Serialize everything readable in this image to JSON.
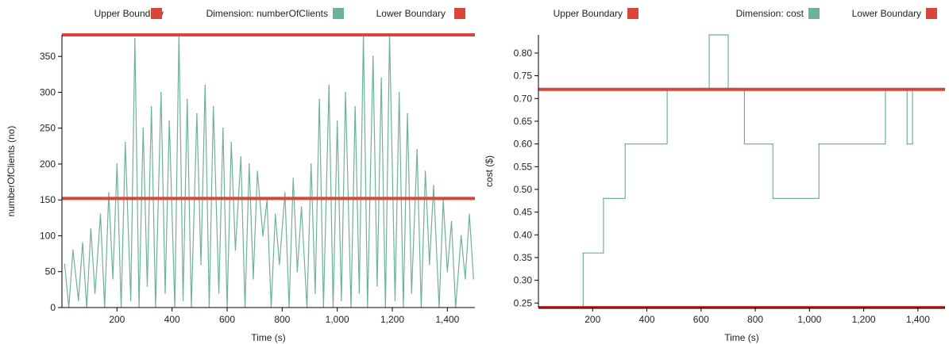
{
  "colors": {
    "boundary": "#d9453a",
    "series": "#6eb394",
    "axis": "#000000",
    "text": "#222222"
  },
  "chart_data": [
    {
      "type": "line",
      "legend": [
        "Upper Boundary",
        "Dimension: numberOfClients",
        "Lower Boundary"
      ],
      "legend_placement": "top",
      "xlabel": "Time (s)",
      "ylabel": "numberOfClients (no)",
      "xlim": [
        0,
        1500
      ],
      "ylim": [
        0,
        380
      ],
      "xticks": [
        200,
        400,
        600,
        800,
        1000,
        1200,
        1400
      ],
      "xtick_labels": [
        "200",
        "400",
        "600",
        "800",
        "1,000",
        "1,200",
        "1,400"
      ],
      "yticks": [
        0,
        50,
        100,
        150,
        200,
        250,
        300,
        350
      ],
      "ytick_labels": [
        "0",
        "50",
        "100",
        "150",
        "200",
        "250",
        "300",
        "350"
      ],
      "grid": false,
      "upper_boundary": 380,
      "lower_boundary": 152,
      "series": [
        {
          "name": "Dimension: numberOfClients",
          "x": [
            10,
            25,
            40,
            60,
            75,
            90,
            105,
            120,
            140,
            155,
            170,
            185,
            200,
            215,
            230,
            250,
            265,
            280,
            295,
            310,
            325,
            340,
            360,
            375,
            390,
            410,
            425,
            440,
            455,
            470,
            490,
            505,
            520,
            535,
            550,
            570,
            585,
            600,
            615,
            630,
            650,
            665,
            680,
            695,
            710,
            730,
            745,
            760,
            775,
            790,
            810,
            825,
            840,
            855,
            870,
            890,
            905,
            920,
            935,
            950,
            970,
            985,
            1000,
            1015,
            1030,
            1050,
            1065,
            1080,
            1095,
            1110,
            1130,
            1145,
            1160,
            1175,
            1190,
            1210,
            1225,
            1240,
            1255,
            1270,
            1290,
            1305,
            1320,
            1335,
            1350,
            1370,
            1385,
            1400,
            1415,
            1430,
            1450,
            1465,
            1480,
            1495
          ],
          "values": [
            60,
            0,
            80,
            10,
            90,
            0,
            110,
            20,
            130,
            0,
            160,
            40,
            200,
            0,
            230,
            10,
            375,
            0,
            250,
            30,
            280,
            0,
            300,
            20,
            260,
            0,
            380,
            10,
            290,
            0,
            270,
            60,
            310,
            0,
            280,
            20,
            250,
            0,
            230,
            80,
            210,
            0,
            200,
            40,
            190,
            100,
            150,
            0,
            130,
            60,
            160,
            0,
            180,
            50,
            140,
            0,
            200,
            20,
            290,
            0,
            310,
            0,
            260,
            10,
            300,
            0,
            280,
            20,
            380,
            0,
            350,
            30,
            320,
            0,
            380,
            10,
            300,
            0,
            270,
            20,
            220,
            0,
            190,
            60,
            170,
            0,
            150,
            50,
            120,
            0,
            100,
            40,
            130,
            40
          ]
        }
      ]
    },
    {
      "type": "line",
      "legend": [
        "Upper Boundary",
        "Dimension: cost",
        "Lower Boundary"
      ],
      "legend_placement": "top",
      "xlabel": "Time (s)",
      "ylabel": "cost ($)",
      "xlim": [
        0,
        1500
      ],
      "ylim": [
        0.24,
        0.84
      ],
      "xticks": [
        200,
        400,
        600,
        800,
        1000,
        1200,
        1400
      ],
      "xtick_labels": [
        "200",
        "400",
        "600",
        "800",
        "1,000",
        "1,200",
        "1,400"
      ],
      "yticks": [
        0.25,
        0.3,
        0.35,
        0.4,
        0.45,
        0.5,
        0.55,
        0.6,
        0.65,
        0.7,
        0.75,
        0.8
      ],
      "ytick_labels": [
        "0.25",
        "0.30",
        "0.35",
        "0.40",
        "0.45",
        "0.50",
        "0.55",
        "0.60",
        "0.65",
        "0.70",
        "0.75",
        "0.80"
      ],
      "grid": false,
      "upper_boundary": 0.72,
      "lower_boundary": 0.24,
      "series": [
        {
          "name": "Dimension: cost",
          "step": true,
          "x": [
            165,
            240,
            320,
            475,
            630,
            700,
            760,
            865,
            1035,
            1280,
            1360,
            1380,
            1385
          ],
          "values": [
            0.36,
            0.48,
            0.6,
            0.72,
            0.84,
            0.72,
            0.6,
            0.48,
            0.6,
            0.72,
            0.6,
            0.72,
            0.72
          ]
        }
      ]
    }
  ]
}
